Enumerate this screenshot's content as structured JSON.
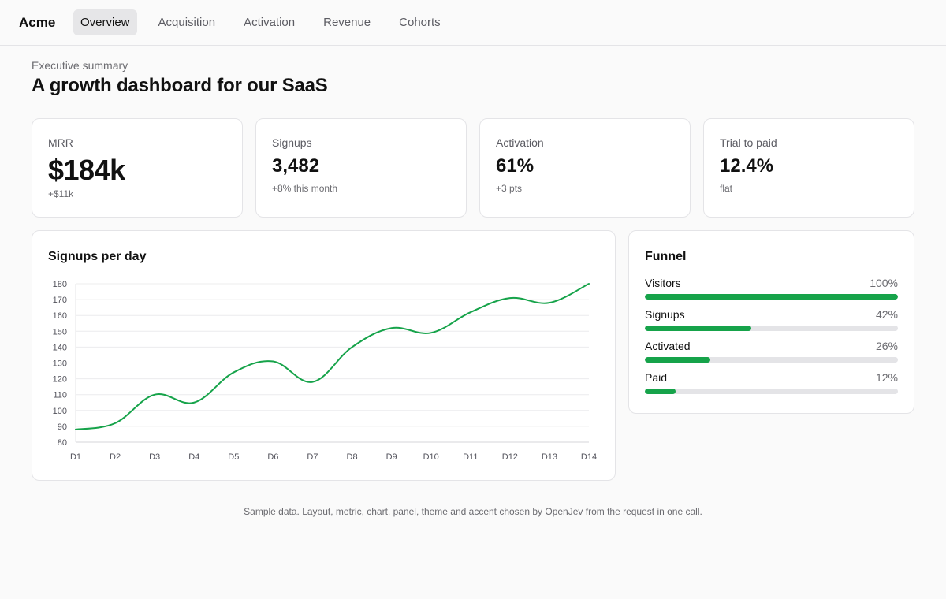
{
  "app": {
    "brand": "Acme"
  },
  "nav": {
    "tabs": [
      {
        "label": "Overview",
        "active": true
      },
      {
        "label": "Acquisition",
        "active": false
      },
      {
        "label": "Activation",
        "active": false
      },
      {
        "label": "Revenue",
        "active": false
      },
      {
        "label": "Cohorts",
        "active": false
      }
    ]
  },
  "header": {
    "eyebrow": "Executive summary",
    "title": "A growth dashboard for our SaaS"
  },
  "metrics": [
    {
      "label": "MRR",
      "value": "$184k",
      "delta": "+$11k"
    },
    {
      "label": "Signups",
      "value": "3,482",
      "delta": "+8% this month"
    },
    {
      "label": "Activation",
      "value": "61%",
      "delta": "+3 pts"
    },
    {
      "label": "Trial to paid",
      "value": "12.4%",
      "delta": "flat"
    }
  ],
  "chart_panel": {
    "title": "Signups per day"
  },
  "chart_data": {
    "type": "line",
    "title": "Signups per day",
    "xlabel": "",
    "ylabel": "",
    "categories": [
      "D1",
      "D2",
      "D3",
      "D4",
      "D5",
      "D6",
      "D7",
      "D8",
      "D9",
      "D10",
      "D11",
      "D12",
      "D13",
      "D14"
    ],
    "series": [
      {
        "values": [
          88,
          92,
          110,
          105,
          124,
          131,
          118,
          140,
          152,
          149,
          162,
          171,
          168,
          180
        ]
      }
    ],
    "ylim": [
      80,
      180
    ],
    "yticks": [
      80,
      90,
      100,
      110,
      120,
      130,
      140,
      150,
      160,
      170,
      180
    ],
    "grid": true,
    "line_color": "#16a34a"
  },
  "funnel": {
    "title": "Funnel",
    "accent": "#16a34a",
    "stages": [
      {
        "name": "Visitors",
        "pct_label": "100%",
        "value": 100
      },
      {
        "name": "Signups",
        "pct_label": "42%",
        "value": 42
      },
      {
        "name": "Activated",
        "pct_label": "26%",
        "value": 26
      },
      {
        "name": "Paid",
        "pct_label": "12%",
        "value": 12
      }
    ]
  },
  "footer": {
    "note": "Sample data. Layout, metric, chart, panel, theme and accent chosen by OpenJev from the request in one call."
  }
}
